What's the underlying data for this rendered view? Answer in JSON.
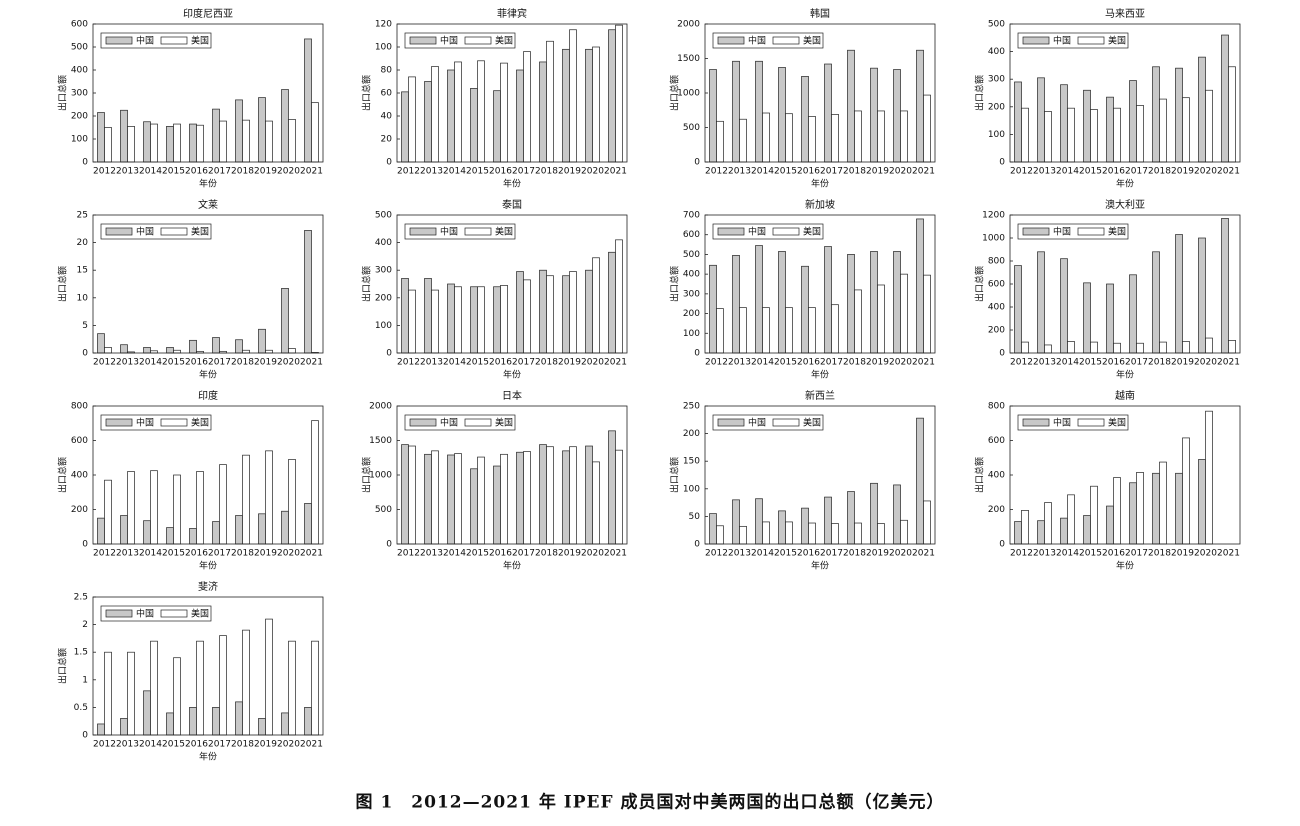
{
  "caption": "图 1　2012—2021 年 IPEF 成员国对中美两国的出口总额（亿美元）",
  "chart_data": [
    {
      "type": "bar",
      "title": "印度尼西亚",
      "xlabel": "年份",
      "ylabel": "出口总额",
      "legend": "upper left",
      "categories": [
        "2012",
        "2013",
        "2014",
        "2015",
        "2016",
        "2017",
        "2018",
        "2019",
        "2020",
        "2021"
      ],
      "series": [
        {
          "name": "中国",
          "color": "#c8c8c8",
          "values": [
            215,
            225,
            175,
            155,
            165,
            230,
            270,
            280,
            315,
            535
          ]
        },
        {
          "name": "美国",
          "color": "#ffffff",
          "values": [
            150,
            155,
            165,
            165,
            160,
            178,
            182,
            178,
            185,
            258
          ]
        }
      ],
      "ylim": [
        0,
        600
      ],
      "yticks": [
        0,
        100,
        200,
        300,
        400,
        500,
        600
      ]
    },
    {
      "type": "bar",
      "title": "菲律宾",
      "xlabel": "年份",
      "ylabel": "出口总额",
      "legend": "upper left",
      "categories": [
        "2012",
        "2013",
        "2014",
        "2015",
        "2016",
        "2017",
        "2018",
        "2019",
        "2020",
        "2021"
      ],
      "series": [
        {
          "name": "中国",
          "color": "#c8c8c8",
          "values": [
            61,
            70,
            80,
            64,
            62,
            80,
            87,
            98,
            98,
            115
          ]
        },
        {
          "name": "美国",
          "color": "#ffffff",
          "values": [
            74,
            83,
            87,
            88,
            86,
            96,
            105,
            115,
            100,
            119
          ]
        }
      ],
      "ylim": [
        0,
        120
      ],
      "yticks": [
        0,
        20,
        40,
        60,
        80,
        100,
        120
      ]
    },
    {
      "type": "bar",
      "title": "韩国",
      "xlabel": "年份",
      "ylabel": "出口总额",
      "legend": "upper left",
      "categories": [
        "2012",
        "2013",
        "2014",
        "2015",
        "2016",
        "2017",
        "2018",
        "2019",
        "2020",
        "2021"
      ],
      "series": [
        {
          "name": "中国",
          "color": "#c8c8c8",
          "values": [
            1340,
            1460,
            1460,
            1370,
            1240,
            1420,
            1620,
            1360,
            1340,
            1620
          ]
        },
        {
          "name": "美国",
          "color": "#ffffff",
          "values": [
            590,
            620,
            710,
            700,
            660,
            690,
            740,
            740,
            740,
            970
          ]
        }
      ],
      "ylim": [
        0,
        2000
      ],
      "yticks": [
        0,
        500,
        1000,
        1500,
        2000
      ]
    },
    {
      "type": "bar",
      "title": "马来西亚",
      "xlabel": "年份",
      "ylabel": "出口总额",
      "legend": "upper left",
      "categories": [
        "2012",
        "2013",
        "2014",
        "2015",
        "2016",
        "2017",
        "2018",
        "2019",
        "2020",
        "2021"
      ],
      "series": [
        {
          "name": "中国",
          "color": "#c8c8c8",
          "values": [
            290,
            305,
            280,
            260,
            235,
            295,
            345,
            340,
            380,
            460
          ]
        },
        {
          "name": "美国",
          "color": "#ffffff",
          "values": [
            195,
            183,
            195,
            190,
            195,
            205,
            228,
            233,
            260,
            345
          ]
        }
      ],
      "ylim": [
        0,
        500
      ],
      "yticks": [
        0,
        100,
        200,
        300,
        400,
        500
      ]
    },
    {
      "type": "bar",
      "title": "文莱",
      "xlabel": "年份",
      "ylabel": "出口总额",
      "legend": "upper left",
      "categories": [
        "2012",
        "2013",
        "2014",
        "2015",
        "2016",
        "2017",
        "2018",
        "2019",
        "2020",
        "2021"
      ],
      "series": [
        {
          "name": "中国",
          "color": "#c8c8c8",
          "values": [
            3.5,
            1.5,
            1,
            1,
            2.3,
            2.8,
            2.4,
            4.3,
            11.7,
            22.2
          ]
        },
        {
          "name": "美国",
          "color": "#ffffff",
          "values": [
            1,
            0.2,
            0.4,
            0.5,
            0.3,
            0.3,
            0.5,
            0.5,
            0.8,
            0.1
          ]
        }
      ],
      "ylim": [
        0,
        25
      ],
      "yticks": [
        0,
        5,
        10,
        15,
        20,
        25
      ]
    },
    {
      "type": "bar",
      "title": "泰国",
      "xlabel": "年份",
      "ylabel": "出口总额",
      "legend": "upper left",
      "categories": [
        "2012",
        "2013",
        "2014",
        "2015",
        "2016",
        "2017",
        "2018",
        "2019",
        "2020",
        "2021"
      ],
      "series": [
        {
          "name": "中国",
          "color": "#c8c8c8",
          "values": [
            270,
            270,
            250,
            240,
            240,
            295,
            300,
            280,
            300,
            365
          ]
        },
        {
          "name": "美国",
          "color": "#ffffff",
          "values": [
            228,
            228,
            240,
            240,
            245,
            265,
            280,
            295,
            345,
            410
          ]
        }
      ],
      "ylim": [
        0,
        500
      ],
      "yticks": [
        0,
        100,
        200,
        300,
        400,
        500
      ]
    },
    {
      "type": "bar",
      "title": "新加坡",
      "xlabel": "年份",
      "ylabel": "出口总额",
      "legend": "upper left",
      "categories": [
        "2012",
        "2013",
        "2014",
        "2015",
        "2016",
        "2017",
        "2018",
        "2019",
        "2020",
        "2021"
      ],
      "series": [
        {
          "name": "中国",
          "color": "#c8c8c8",
          "values": [
            445,
            495,
            545,
            515,
            440,
            540,
            500,
            515,
            515,
            680
          ]
        },
        {
          "name": "美国",
          "color": "#ffffff",
          "values": [
            225,
            230,
            230,
            230,
            230,
            245,
            320,
            345,
            400,
            395
          ]
        }
      ],
      "ylim": [
        0,
        700
      ],
      "yticks": [
        0,
        100,
        200,
        300,
        400,
        500,
        600,
        700
      ]
    },
    {
      "type": "bar",
      "title": "澳大利亚",
      "xlabel": "年份",
      "ylabel": "出口总额",
      "legend": "upper left",
      "categories": [
        "2012",
        "2013",
        "2014",
        "2015",
        "2016",
        "2017",
        "2018",
        "2019",
        "2020",
        "2021"
      ],
      "series": [
        {
          "name": "中国",
          "color": "#c8c8c8",
          "values": [
            760,
            880,
            820,
            610,
            600,
            680,
            880,
            1030,
            1000,
            1170
          ]
        },
        {
          "name": "美国",
          "color": "#ffffff",
          "values": [
            95,
            70,
            100,
            95,
            85,
            85,
            95,
            100,
            130,
            110
          ]
        }
      ],
      "ylim": [
        0,
        1200
      ],
      "yticks": [
        0,
        200,
        400,
        600,
        800,
        1000,
        1200
      ]
    },
    {
      "type": "bar",
      "title": "印度",
      "xlabel": "年份",
      "ylabel": "出口总额",
      "legend": "upper left",
      "categories": [
        "2012",
        "2013",
        "2014",
        "2015",
        "2016",
        "2017",
        "2018",
        "2019",
        "2020",
        "2021"
      ],
      "series": [
        {
          "name": "中国",
          "color": "#c8c8c8",
          "values": [
            150,
            165,
            135,
            95,
            90,
            130,
            165,
            175,
            190,
            235
          ]
        },
        {
          "name": "美国",
          "color": "#ffffff",
          "values": [
            370,
            420,
            425,
            400,
            420,
            460,
            515,
            540,
            490,
            715
          ]
        }
      ],
      "ylim": [
        0,
        800
      ],
      "yticks": [
        0,
        200,
        400,
        600,
        800
      ]
    },
    {
      "type": "bar",
      "title": "日本",
      "xlabel": "年份",
      "ylabel": "出口总额",
      "legend": "upper left",
      "categories": [
        "2012",
        "2013",
        "2014",
        "2015",
        "2016",
        "2017",
        "2018",
        "2019",
        "2020",
        "2021"
      ],
      "series": [
        {
          "name": "中国",
          "color": "#c8c8c8",
          "values": [
            1440,
            1300,
            1290,
            1090,
            1130,
            1330,
            1440,
            1350,
            1420,
            1640
          ]
        },
        {
          "name": "美国",
          "color": "#ffffff",
          "values": [
            1420,
            1350,
            1310,
            1260,
            1300,
            1340,
            1410,
            1410,
            1190,
            1360
          ]
        }
      ],
      "ylim": [
        0,
        2000
      ],
      "yticks": [
        0,
        500,
        1000,
        1500,
        2000
      ]
    },
    {
      "type": "bar",
      "title": "新西兰",
      "xlabel": "年份",
      "ylabel": "出口总额",
      "legend": "upper left",
      "categories": [
        "2012",
        "2013",
        "2014",
        "2015",
        "2016",
        "2017",
        "2018",
        "2019",
        "2020",
        "2021"
      ],
      "series": [
        {
          "name": "中国",
          "color": "#c8c8c8",
          "values": [
            55,
            80,
            82,
            60,
            65,
            85,
            95,
            110,
            107,
            228
          ]
        },
        {
          "name": "美国",
          "color": "#ffffff",
          "values": [
            33,
            32,
            40,
            40,
            38,
            37,
            38,
            37,
            43,
            78
          ]
        }
      ],
      "ylim": [
        0,
        250
      ],
      "yticks": [
        0,
        50,
        100,
        150,
        200,
        250
      ]
    },
    {
      "type": "bar",
      "title": "越南",
      "xlabel": "年份",
      "ylabel": "出口总额",
      "legend": "upper left",
      "categories": [
        "2012",
        "2013",
        "2014",
        "2015",
        "2016",
        "2017",
        "2018",
        "2019",
        "2020",
        "2021"
      ],
      "series": [
        {
          "name": "中国",
          "color": "#c8c8c8",
          "values": [
            130,
            135,
            150,
            165,
            220,
            355,
            410,
            410,
            490,
            null
          ]
        },
        {
          "name": "美国",
          "color": "#ffffff",
          "values": [
            195,
            240,
            285,
            335,
            385,
            415,
            475,
            615,
            770,
            null
          ]
        }
      ],
      "ylim": [
        0,
        800
      ],
      "yticks": [
        0,
        200,
        400,
        600,
        800
      ]
    },
    {
      "type": "bar",
      "title": "斐济",
      "xlabel": "年份",
      "ylabel": "出口总额",
      "legend": "upper left",
      "categories": [
        "2012",
        "2013",
        "2014",
        "2015",
        "2016",
        "2017",
        "2018",
        "2019",
        "2020",
        "2021"
      ],
      "series": [
        {
          "name": "中国",
          "color": "#c8c8c8",
          "values": [
            0.2,
            0.3,
            0.8,
            0.4,
            0.5,
            0.5,
            0.6,
            0.3,
            0.4,
            0.5
          ]
        },
        {
          "name": "美国",
          "color": "#ffffff",
          "values": [
            1.5,
            1.5,
            1.7,
            1.4,
            1.7,
            1.8,
            1.9,
            2.1,
            1.7,
            1.7
          ]
        }
      ],
      "ylim": [
        0,
        2.5
      ],
      "yticks": [
        0,
        0.5,
        1,
        1.5,
        2,
        2.5
      ]
    }
  ]
}
